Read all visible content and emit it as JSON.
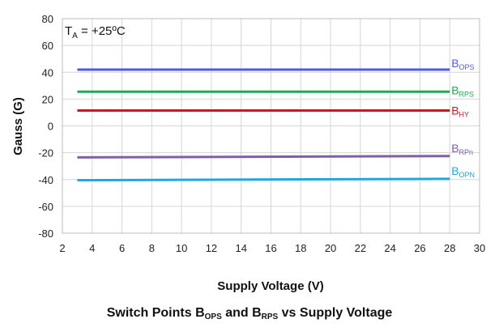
{
  "chart_data": {
    "type": "line",
    "title": "Switch  Points BOPS and BRPS vs Supply Voltage",
    "title_parts": {
      "pre": "Switch  Points B",
      "sub1": "OPS",
      "mid": " and B",
      "sub2": "RPS",
      "post": " vs Supply Voltage"
    },
    "xlabel": "Supply Voltage (V)",
    "ylabel": "Gauss (G)",
    "xlim": [
      2,
      30
    ],
    "ylim": [
      -80,
      80
    ],
    "xticks": [
      2,
      4,
      6,
      8,
      10,
      12,
      14,
      16,
      18,
      20,
      22,
      24,
      26,
      28,
      30
    ],
    "yticks": [
      80,
      60,
      40,
      20,
      0,
      -20,
      -40,
      -60,
      -80
    ],
    "grid": true,
    "annotation": {
      "text_main": "T",
      "text_sub": "A",
      "text_rest": " = +25ºC"
    },
    "legend_position": "inline-right",
    "series": [
      {
        "name": "BOPS",
        "label_main": "B",
        "label_sub": "OPS",
        "color": "#4d5be6",
        "x": [
          3,
          28
        ],
        "values": [
          42,
          42
        ]
      },
      {
        "name": "BRPS",
        "label_main": "B",
        "label_sub": "RPS",
        "color": "#1faa4f",
        "x": [
          3,
          28
        ],
        "values": [
          25.5,
          25.5
        ]
      },
      {
        "name": "BHY",
        "label_main": "B",
        "label_sub": "HY",
        "color": "#c8181e",
        "x": [
          3,
          28
        ],
        "values": [
          11.5,
          11.5
        ]
      },
      {
        "name": "BRPn",
        "label_main": "B",
        "label_sub": "RPn",
        "color": "#7f5fa8",
        "x": [
          3,
          28
        ],
        "values": [
          -23.5,
          -22.5
        ]
      },
      {
        "name": "BOPN",
        "label_main": "B",
        "label_sub": "OPN",
        "color": "#1ea7e0",
        "x": [
          3,
          28
        ],
        "values": [
          -40.5,
          -39.5
        ]
      }
    ]
  }
}
